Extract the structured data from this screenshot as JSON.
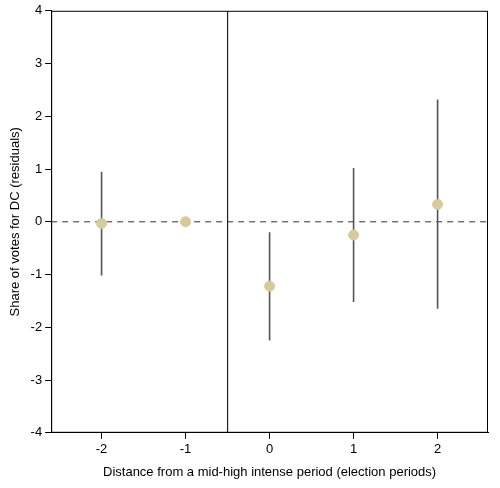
{
  "chart_data": {
    "type": "scatter",
    "x_label": "Distance from a mid-high intense period (election periods)",
    "y_label": "Share of votes for DC (residuals)",
    "x": [
      -2,
      -1,
      0,
      1,
      2
    ],
    "values": [
      -0.03,
      0,
      -1.22,
      -0.25,
      0.33
    ],
    "ci_low": [
      -1.02,
      0,
      -2.25,
      -1.52,
      -1.65
    ],
    "ci_high": [
      0.95,
      0,
      -0.2,
      1.02,
      2.32
    ],
    "color": "#d6cb9c",
    "marker": "circle",
    "vline": -0.5,
    "hline": 0,
    "xlim": [
      -2.6,
      2.6
    ],
    "xticks": [
      -2,
      -1,
      0,
      1,
      2
    ],
    "ylim": [
      -4,
      4
    ],
    "yticks": [
      -4,
      -3,
      -2,
      -1,
      0,
      1,
      2,
      3,
      4
    ],
    "grid": false
  }
}
